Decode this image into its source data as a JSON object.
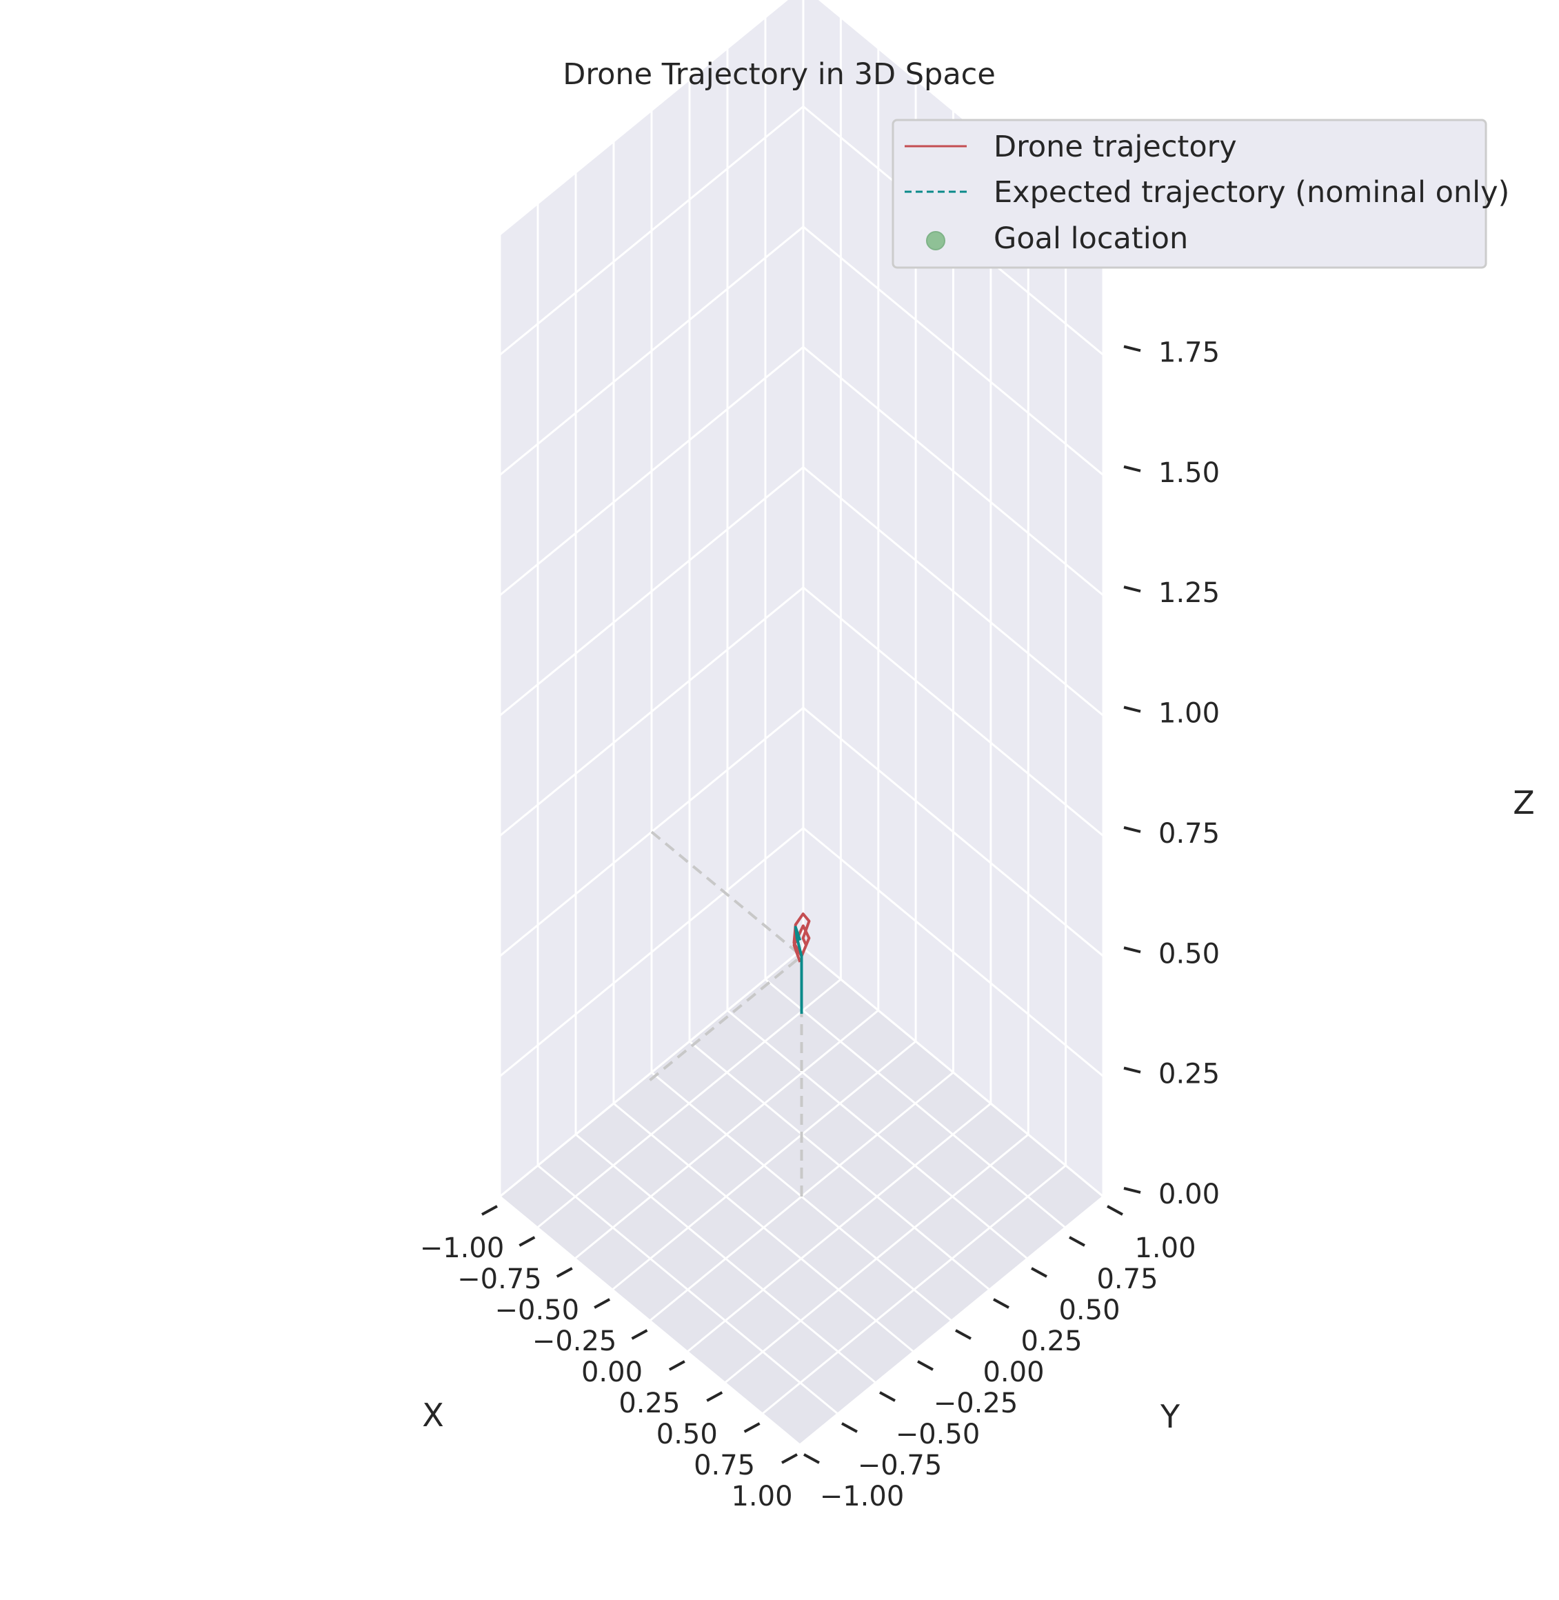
{
  "chart_data": {
    "type": "line3d",
    "title": "Drone Trajectory in 3D Space",
    "xlabel": "X",
    "ylabel": "Y",
    "zlabel": "Z",
    "xlim": [
      -1.0,
      1.0
    ],
    "ylim": [
      -1.0,
      1.0
    ],
    "zlim": [
      0.0,
      2.0
    ],
    "xticks": [
      "−1.00",
      "−0.75",
      "−0.50",
      "−0.25",
      "0.00",
      "0.25",
      "0.50",
      "0.75",
      "1.00"
    ],
    "yticks": [
      "−1.00",
      "−0.75",
      "−0.50",
      "−0.25",
      "0.00",
      "0.25",
      "0.50",
      "0.75",
      "1.00"
    ],
    "zticks": [
      "0.00",
      "0.25",
      "0.50",
      "0.75",
      "1.00",
      "1.25",
      "1.50",
      "1.75",
      "2.00"
    ],
    "grid": true,
    "legend_position": "top-right",
    "legend": [
      {
        "label": "Drone trajectory",
        "style": "solid-line",
        "color": "#c44e52"
      },
      {
        "label": "Expected trajectory (nominal only)",
        "style": "dashed-line",
        "color": "#0b8a8a"
      },
      {
        "label": "Goal location",
        "style": "marker",
        "color": "#8fc196"
      }
    ],
    "series": [
      {
        "name": "Drone trajectory",
        "color": "#c44e52",
        "points": [
          [
            0.0,
            0.0,
            0.5
          ],
          [
            0.01,
            0.02,
            0.52
          ],
          [
            0.03,
            -0.02,
            0.55
          ],
          [
            0.02,
            0.03,
            0.57
          ],
          [
            -0.01,
            0.02,
            0.58
          ],
          [
            -0.03,
            -0.01,
            0.56
          ],
          [
            -0.02,
            -0.03,
            0.53
          ],
          [
            0.02,
            -0.02,
            0.51
          ],
          [
            0.03,
            0.02,
            0.54
          ],
          [
            -0.02,
            0.03,
            0.55
          ],
          [
            -0.03,
            -0.02,
            0.52
          ],
          [
            0.0,
            -0.01,
            0.49
          ]
        ]
      },
      {
        "name": "Expected trajectory (nominal only)",
        "color": "#0b8a8a",
        "points": [
          [
            0.0,
            0.0,
            0.38
          ],
          [
            0.0,
            0.0,
            0.45
          ],
          [
            0.0,
            0.0,
            0.5
          ],
          [
            -0.01,
            -0.02,
            0.54
          ],
          [
            -0.02,
            -0.02,
            0.56
          ],
          [
            -0.01,
            0.0,
            0.53
          ]
        ]
      }
    ],
    "reference_lines": {
      "color": "#c8c8c8",
      "segments": [
        [
          [
            -1.0,
            0.0,
            0.5
          ],
          [
            0.0,
            0.0,
            0.5
          ]
        ],
        [
          [
            0.0,
            -1.0,
            0.5
          ],
          [
            0.0,
            0.0,
            0.5
          ]
        ],
        [
          [
            0.0,
            0.0,
            0.0
          ],
          [
            0.0,
            0.0,
            0.5
          ]
        ]
      ]
    }
  }
}
